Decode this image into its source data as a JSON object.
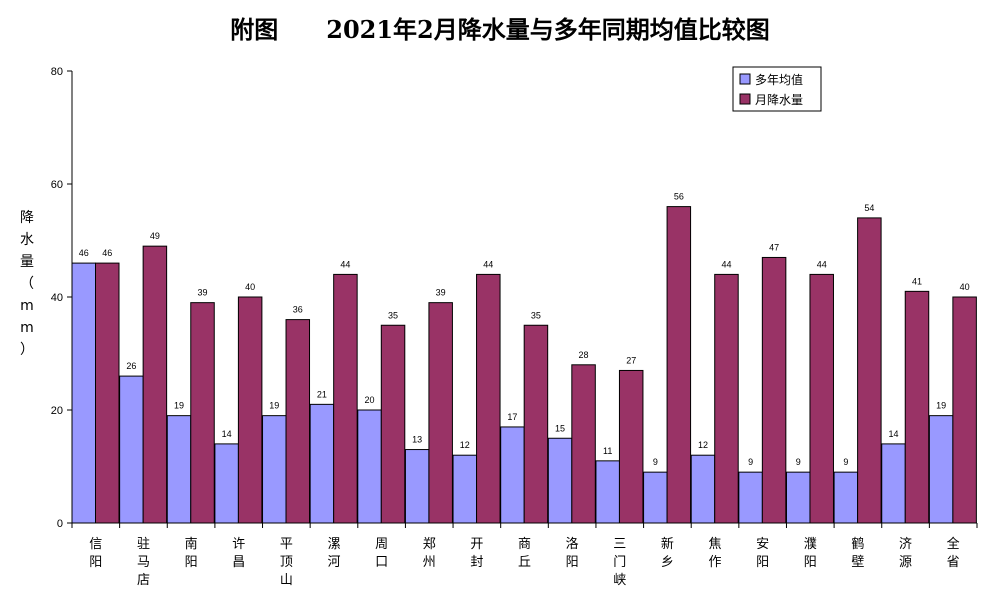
{
  "chart_data": {
    "type": "bar",
    "title": "附图　　2021年2月降水量与多年同期均值比较图",
    "ylabel": "降水量（mm）",
    "ylim": [
      0,
      80
    ],
    "yticks": [
      0,
      20,
      40,
      60,
      80
    ],
    "grid": false,
    "legend_position": "top-right",
    "categories": [
      "信阳",
      "驻马店",
      "南阳",
      "许昌",
      "平顶山",
      "漯河",
      "周口",
      "郑州",
      "开封",
      "商丘",
      "洛阳",
      "三门峡",
      "新乡",
      "焦作",
      "安阳",
      "濮阳",
      "鹤壁",
      "济源",
      "全省"
    ],
    "series": [
      {
        "name": "多年均值",
        "color": "#9999ff",
        "values": [
          46,
          26,
          19,
          14,
          19,
          21,
          20,
          13,
          12,
          17,
          15,
          11,
          9,
          12,
          9,
          9,
          9,
          14,
          19
        ]
      },
      {
        "name": "月降水量",
        "color": "#993366",
        "values": [
          46,
          49,
          39,
          40,
          36,
          44,
          35,
          39,
          44,
          35,
          28,
          27,
          56,
          44,
          47,
          44,
          54,
          41,
          40
        ]
      }
    ]
  }
}
